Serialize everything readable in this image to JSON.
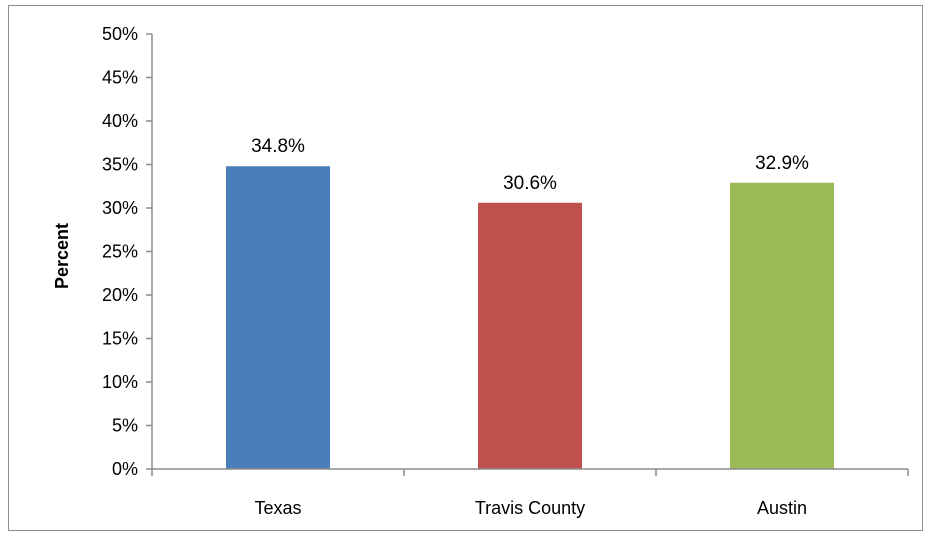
{
  "chart_data": {
    "type": "bar",
    "title": "",
    "xlabel": "",
    "ylabel": "Percent",
    "categories": [
      "Texas",
      "Travis County",
      "Austin"
    ],
    "values": [
      34.8,
      30.6,
      32.9
    ],
    "data_labels": [
      "34.8%",
      "30.6%",
      "32.9%"
    ],
    "bar_colors": [
      "#4a7ebb",
      "#c0504d",
      "#9bbb59"
    ],
    "ylim": [
      0,
      50
    ],
    "y_ticks": [
      0,
      5,
      10,
      15,
      20,
      25,
      30,
      35,
      40,
      45,
      50
    ],
    "y_tick_labels": [
      "0%",
      "5%",
      "10%",
      "15%",
      "20%",
      "25%",
      "30%",
      "35%",
      "40%",
      "45%",
      "50%"
    ],
    "grid": false,
    "legend": "none"
  }
}
